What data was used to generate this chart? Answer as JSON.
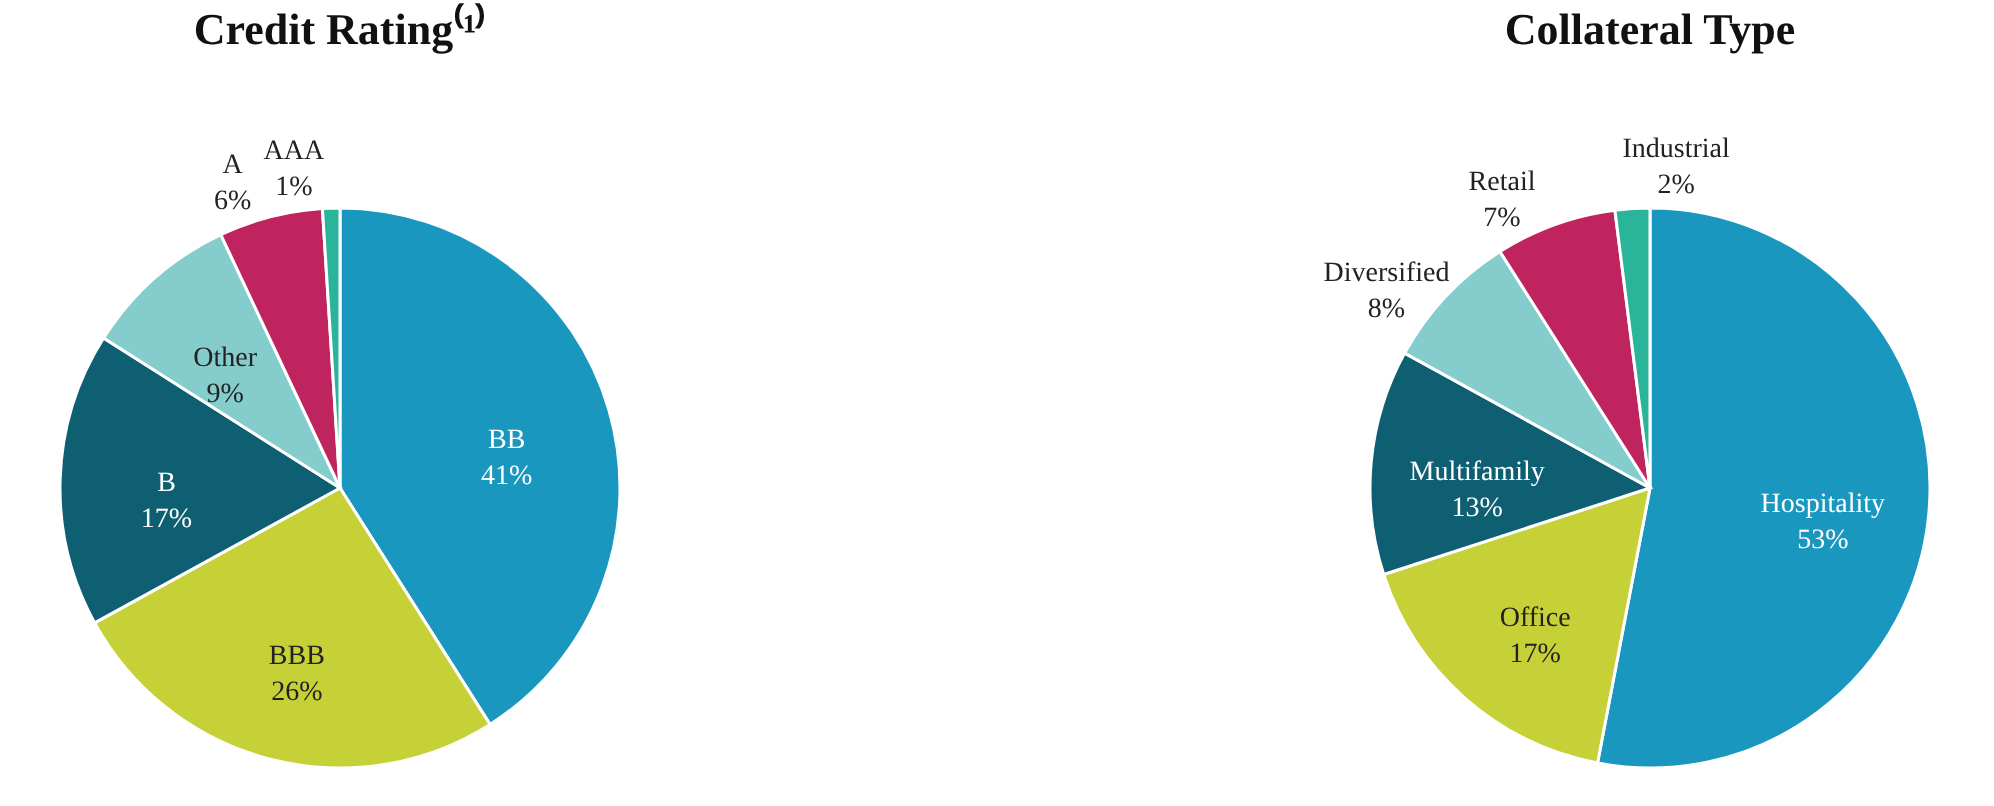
{
  "chart_data": [
    {
      "type": "pie",
      "title": "Credit Rating⁽¹⁾",
      "categories": [
        "BB",
        "BBB",
        "B",
        "Other",
        "A",
        "AAA"
      ],
      "values": [
        41,
        26,
        17,
        9,
        6,
        1
      ],
      "value_labels": [
        "41%",
        "26%",
        "17%",
        "9%",
        "6%",
        "1%"
      ],
      "colors": [
        "#1a97bf",
        "#c5d136",
        "#0f5f73",
        "#85cccc",
        "#c0245f",
        "#2ab59a"
      ],
      "legend": false
    },
    {
      "type": "pie",
      "title": "Collateral Type",
      "categories": [
        "Hospitality",
        "Office",
        "Multifamily",
        "Diversified",
        "Retail",
        "Industrial"
      ],
      "values": [
        53,
        17,
        13,
        8,
        7,
        2
      ],
      "value_labels": [
        "53%",
        "17%",
        "13%",
        "8%",
        "7%",
        "2%"
      ],
      "colors": [
        "#1a97bf",
        "#c5d136",
        "#0f5f73",
        "#85cccc",
        "#c0245f",
        "#2ab59a"
      ],
      "legend": false
    }
  ]
}
